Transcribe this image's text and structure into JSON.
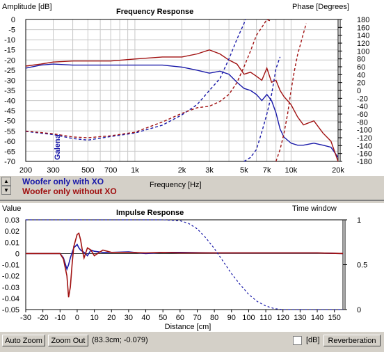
{
  "colors": {
    "series1": "#1818a8",
    "series2": "#a01010",
    "grid": "#c8c8c8"
  },
  "frequency_response": {
    "left_axis_title": "Amplitude [dB]",
    "title": "Frequency Response",
    "right_axis_title": "Phase [Degrees]",
    "xlabel": "Frequency [Hz]",
    "overlay_label": "Galena",
    "legend": [
      "Woofer only with XO",
      "Woofer only without XO"
    ]
  },
  "impulse_response": {
    "left_axis_title": "Value",
    "title": "Impulse Response",
    "right_axis_title": "Time window",
    "xlabel": "Distance [cm]"
  },
  "bottom_bar": {
    "auto_zoom": "Auto Zoom",
    "zoom_out": "Zoom Out",
    "cursor_readout": "(83.3cm; -0.079)",
    "db_label": "[dB]",
    "reverberation": "Reverberation"
  },
  "chart_data": [
    {
      "type": "line",
      "title": "Frequency Response",
      "xlabel": "Frequency [Hz]",
      "ylabel": "Amplitude [dB]",
      "y2label": "Phase [Degrees]",
      "xscale": "log",
      "xlim": [
        200,
        20000
      ],
      "ylim": [
        -70,
        0
      ],
      "y2lim": [
        -180,
        180
      ],
      "x_ticks": [
        "200",
        "300",
        "500",
        "700",
        "1k",
        "2k",
        "3k",
        "5k",
        "7k",
        "10k",
        "20k"
      ],
      "x_tick_values": [
        200,
        300,
        500,
        700,
        1000,
        2000,
        3000,
        5000,
        7000,
        10000,
        20000
      ],
      "y_ticks": [
        0,
        -5,
        -10,
        -15,
        -20,
        -25,
        -30,
        -35,
        -40,
        -45,
        -50,
        -55,
        -60,
        -65,
        -70
      ],
      "y2_ticks": [
        180,
        160,
        140,
        120,
        100,
        80,
        60,
        40,
        20,
        0,
        -20,
        -40,
        -60,
        -80,
        -100,
        -120,
        -140,
        -160,
        -180
      ],
      "grid": true,
      "series": [
        {
          "name": "Woofer only with XO",
          "kind": "amplitude",
          "color": "#1818a8",
          "x": [
            200,
            250,
            300,
            400,
            500,
            700,
            1000,
            1500,
            2000,
            2500,
            3000,
            3500,
            4000,
            4500,
            5000,
            5500,
            6000,
            6500,
            7000,
            7500,
            8000,
            8500,
            9000,
            10000,
            11000,
            12000,
            14000,
            16000,
            18000,
            20000
          ],
          "y": [
            -24,
            -22.5,
            -22,
            -22.5,
            -22.5,
            -22.5,
            -22.5,
            -22.5,
            -23.5,
            -25,
            -26.5,
            -25.5,
            -27,
            -31,
            -34,
            -35,
            -37,
            -40,
            -37,
            -40,
            -46,
            -54,
            -58,
            -61,
            -62,
            -62,
            -61,
            -62,
            -63,
            -68
          ]
        },
        {
          "name": "Woofer only without XO",
          "kind": "amplitude",
          "color": "#a01010",
          "x": [
            200,
            250,
            300,
            400,
            500,
            700,
            1000,
            1500,
            2000,
            2500,
            3000,
            3500,
            4000,
            4500,
            5000,
            5500,
            6000,
            6500,
            7000,
            7500,
            8000,
            8500,
            9000,
            10000,
            11000,
            12000,
            14000,
            16000,
            18000,
            20000
          ],
          "y": [
            -23,
            -22,
            -21,
            -20.5,
            -20.5,
            -20.5,
            -19.5,
            -18.5,
            -18.5,
            -17,
            -15,
            -17,
            -20,
            -22,
            -27,
            -26,
            -28,
            -30,
            -24,
            -31,
            -30,
            -35,
            -38,
            -42,
            -48,
            -52,
            -50,
            -56,
            -60,
            -70
          ]
        },
        {
          "name": "Woofer only with XO",
          "kind": "phase",
          "color": "#1818a8",
          "x": [
            200,
            300,
            400,
            500,
            700,
            1000,
            1500,
            2000,
            2500,
            3000,
            3500,
            4000,
            4500,
            5000,
            5100
          ],
          "y": [
            -104,
            -112,
            -122,
            -126,
            -117,
            -108,
            -88,
            -62,
            -36,
            0,
            30,
            80,
            130,
            170,
            180
          ]
        },
        {
          "name": "Woofer only with XO",
          "kind": "phase",
          "color": "#1818a8",
          "x": [
            5000,
            5500,
            6000,
            6500,
            7000,
            7500,
            8000,
            8500
          ],
          "y": [
            -180,
            -170,
            -150,
            -105,
            -60,
            -10,
            55,
            85
          ]
        },
        {
          "name": "Woofer only without XO",
          "kind": "phase",
          "color": "#a01010",
          "x": [
            200,
            300,
            400,
            500,
            700,
            1000,
            1500,
            2000,
            2500,
            3000,
            3500,
            4000,
            4500,
            5000,
            5500,
            6000,
            6500,
            7000,
            7500
          ],
          "y": [
            -103,
            -110,
            -118,
            -120,
            -115,
            -106,
            -80,
            -58,
            -44,
            -40,
            -28,
            -10,
            20,
            60,
            100,
            140,
            160,
            180,
            175
          ]
        },
        {
          "name": "Woofer only without XO",
          "kind": "phase",
          "color": "#a01010",
          "x": [
            8000,
            8500,
            9000,
            9500,
            10000,
            10500,
            11000,
            12000,
            12500
          ],
          "y": [
            -180,
            -150,
            -110,
            -60,
            0,
            50,
            90,
            145,
            170
          ]
        }
      ]
    },
    {
      "type": "line",
      "title": "Impulse Response",
      "xlabel": "Distance [cm]",
      "ylabel": "Value",
      "y2label": "Time window",
      "xlim": [
        -30,
        155
      ],
      "ylim": [
        -0.05,
        0.03
      ],
      "y2lim": [
        0,
        1
      ],
      "x_ticks": [
        -30,
        -20,
        -10,
        0,
        10,
        20,
        30,
        40,
        50,
        60,
        70,
        80,
        90,
        100,
        110,
        120,
        130,
        140,
        150
      ],
      "y_ticks": [
        0.03,
        0.02,
        0.01,
        0,
        -0.01,
        -0.02,
        -0.03,
        -0.04,
        -0.05
      ],
      "y2_ticks": [
        1,
        0.5,
        0
      ],
      "grid": false,
      "series": [
        {
          "name": "Woofer only with XO",
          "kind": "impulse",
          "color": "#1818a8",
          "x": [
            -30,
            -10,
            -8,
            -6,
            -5,
            -4,
            -2,
            0,
            1,
            2,
            4,
            6,
            8,
            10,
            15,
            20,
            30,
            40,
            50,
            60,
            80,
            100,
            120,
            140,
            155
          ],
          "y": [
            0,
            0,
            -0.004,
            -0.014,
            -0.01,
            -0.004,
            0.005,
            0.008,
            0.005,
            0.003,
            0.001,
            -0.002,
            0.003,
            0.002,
            0.001,
            0.001,
            0.0015,
            0,
            0.001,
            0.001,
            0.0005,
            0.0005,
            0.0005,
            0.0005,
            0
          ]
        },
        {
          "name": "Woofer only without XO",
          "kind": "impulse",
          "color": "#a01010",
          "x": [
            -30,
            -10,
            -8,
            -6,
            -5,
            -4,
            -3,
            -2,
            0,
            1,
            2,
            3,
            4,
            6,
            8,
            10,
            15,
            20,
            30,
            40,
            50,
            60,
            80,
            100,
            120,
            140,
            155
          ],
          "y": [
            0,
            0,
            -0.005,
            -0.02,
            -0.039,
            -0.03,
            -0.01,
            0.006,
            0.017,
            0.018,
            0.012,
            0.003,
            -0.004,
            0.005,
            0.003,
            -0.002,
            0.003,
            0.001,
            0.001,
            0.0005,
            0.001,
            0.0005,
            0.0005,
            0.0005,
            0.0005,
            0.0005,
            0
          ]
        },
        {
          "name": "Time window",
          "kind": "window",
          "color": "#1818a8",
          "x": [
            -30,
            50,
            60,
            65,
            70,
            75,
            80,
            85,
            90,
            95,
            100,
            105,
            110,
            115,
            120,
            155
          ],
          "y": [
            1,
            1,
            0.99,
            0.96,
            0.9,
            0.8,
            0.68,
            0.54,
            0.4,
            0.28,
            0.17,
            0.09,
            0.04,
            0.01,
            0,
            0
          ]
        }
      ]
    }
  ]
}
